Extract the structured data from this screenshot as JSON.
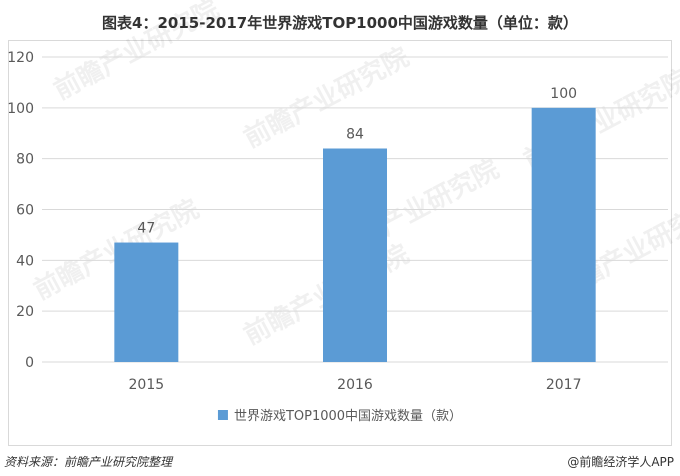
{
  "title": "图表4：2015-2017年世界游戏TOP1000中国游戏数量（单位：款）",
  "source": "资料来源：前瞻产业研究院整理",
  "brand": "@前瞻经济学人APP",
  "watermark": "前瞻产业研究院",
  "colors": {
    "bar": "#5b9bd5",
    "grid": "#d9d9d9",
    "text": "#595959"
  },
  "chart_data": {
    "type": "bar",
    "categories": [
      "2015",
      "2016",
      "2017"
    ],
    "series": [
      {
        "name": "世界游戏TOP1000中国游戏数量（款）",
        "values": [
          47,
          84,
          100
        ]
      }
    ],
    "ylim": [
      0,
      120
    ],
    "yticks": [
      0,
      20,
      40,
      60,
      80,
      100,
      120
    ],
    "grid": true,
    "legend": "bottom",
    "data_labels": true
  }
}
